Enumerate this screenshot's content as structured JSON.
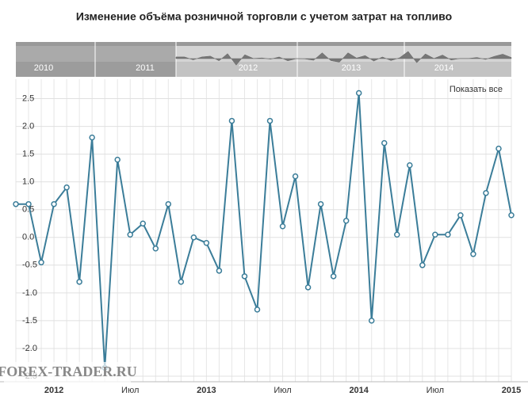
{
  "chart_data": {
    "type": "line",
    "title": "Изменение объёма розничной торговли с учетом затрат на топливо",
    "reset_button": "Показать все",
    "watermark": "FOREX-TRADER.RU",
    "navigator": {
      "labels": [
        "2010",
        "2011",
        "2012",
        "2013",
        "2014"
      ]
    },
    "categories": [
      null,
      null,
      null,
      "2012",
      null,
      null,
      null,
      null,
      null,
      "Июл",
      null,
      null,
      null,
      null,
      null,
      "2013",
      null,
      null,
      null,
      null,
      null,
      "Июл",
      null,
      null,
      null,
      null,
      null,
      "2014",
      null,
      null,
      null,
      null,
      null,
      "Июл",
      null,
      null,
      null,
      null,
      null,
      "2015"
    ],
    "series": [
      {
        "color": "#3b7d99",
        "values": [
          0.6,
          0.6,
          -0.45,
          0.6,
          0.9,
          -0.8,
          1.8,
          -2.35,
          1.4,
          0.05,
          0.25,
          -0.2,
          0.6,
          -0.8,
          0.0,
          -0.1,
          -0.6,
          2.1,
          -0.7,
          -1.3,
          2.1,
          0.2,
          1.1,
          -0.9,
          0.6,
          -0.7,
          0.3,
          2.6,
          -1.5,
          1.7,
          0.05,
          1.3,
          -0.5,
          0.05,
          0.05,
          0.4,
          -0.3,
          0.8,
          1.6,
          0.4
        ]
      }
    ],
    "ylim": [
      -2.6,
      2.85
    ],
    "yticks": [
      2.5,
      {
        "value": 2,
        "label": "2.0"
      },
      1.5,
      {
        "value": 1,
        "label": "1.0"
      },
      0.5,
      {
        "value": 0,
        "label": "0.0"
      },
      -0.5,
      {
        "value": -1,
        "label": "-1.0"
      },
      -1.5,
      {
        "value": -2,
        "label": "-2.0"
      },
      -2.5
    ],
    "grid": true
  }
}
